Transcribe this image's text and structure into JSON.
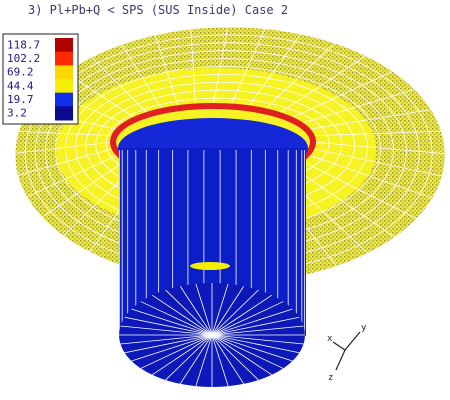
{
  "header": {
    "title": "3) Pl+Pb+Q < SPS (SUS Inside) Case 2"
  },
  "legend": {
    "levels": [
      {
        "label": "118.7",
        "color": "#b00000"
      },
      {
        "label": "102.2",
        "color": "#ff2a00"
      },
      {
        "label": "69.2",
        "color": "#ffd800"
      },
      {
        "label": "44.4",
        "color": "#f4f000"
      },
      {
        "label": "19.7",
        "color": "#1030e8"
      },
      {
        "label": "3.2",
        "color": "#0a0a90"
      }
    ]
  },
  "axes": {
    "x": "x",
    "y": "y",
    "z": "z"
  }
}
